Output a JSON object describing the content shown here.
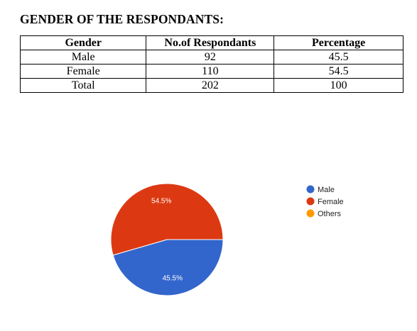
{
  "title": "GENDER OF THE RESPONDANTS:",
  "table": {
    "headers": [
      "Gender",
      "No.of Respondants",
      "Percentage"
    ],
    "rows": [
      [
        "Male",
        "92",
        "45.5"
      ],
      [
        "Female",
        "110",
        "54.5"
      ],
      [
        "Total",
        "202",
        "100"
      ]
    ]
  },
  "chart_data": {
    "type": "pie",
    "categories": [
      "Male",
      "Female",
      "Others"
    ],
    "values": [
      45.5,
      54.5,
      0
    ],
    "slice_labels": [
      "45.5%",
      "54.5%",
      ""
    ],
    "colors": [
      "#3366cc",
      "#dc3912",
      "#ff9900"
    ],
    "legend_position": "right"
  }
}
